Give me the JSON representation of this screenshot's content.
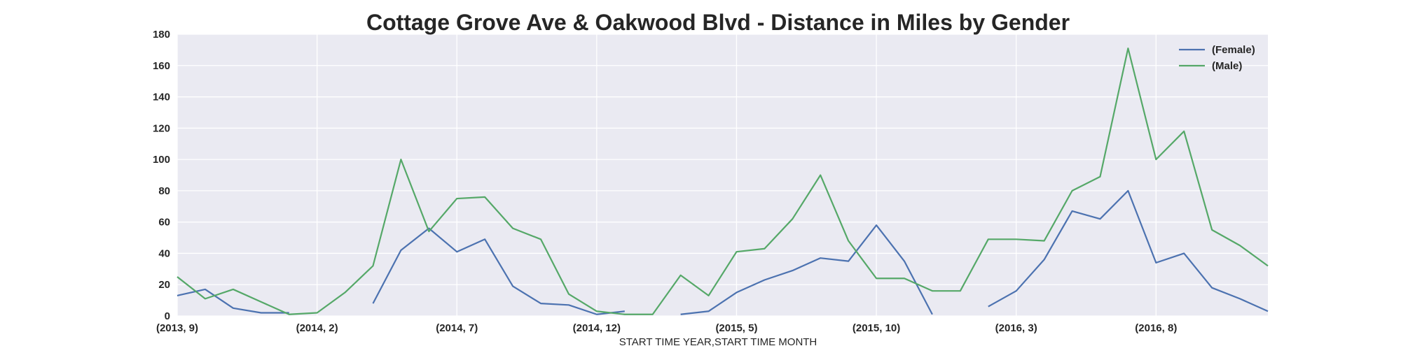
{
  "chart_data": {
    "type": "line",
    "title": "Cottage Grove Ave & Oakwood Blvd - Distance in Miles by Gender",
    "xlabel": "START TIME YEAR,START TIME MONTH",
    "ylabel": "",
    "ylim": [
      0,
      180
    ],
    "yticks": [
      0,
      20,
      40,
      60,
      80,
      100,
      120,
      140,
      160,
      180
    ],
    "grid": true,
    "legend_position": "top-right",
    "categories": [
      "(2013, 9)",
      "(2013, 10)",
      "(2013, 11)",
      "(2013, 12)",
      "(2014, 1)",
      "(2014, 2)",
      "(2014, 3)",
      "(2014, 4)",
      "(2014, 5)",
      "(2014, 6)",
      "(2014, 7)",
      "(2014, 8)",
      "(2014, 9)",
      "(2014, 10)",
      "(2014, 11)",
      "(2014, 12)",
      "(2015, 1)",
      "(2015, 2)",
      "(2015, 3)",
      "(2015, 4)",
      "(2015, 5)",
      "(2015, 6)",
      "(2015, 7)",
      "(2015, 8)",
      "(2015, 9)",
      "(2015, 10)",
      "(2015, 11)",
      "(2015, 12)",
      "(2016, 1)",
      "(2016, 2)",
      "(2016, 3)",
      "(2016, 4)",
      "(2016, 5)",
      "(2016, 6)",
      "(2016, 7)",
      "(2016, 8)",
      "(2016, 9)",
      "(2016, 10)",
      "(2016, 11)",
      "(2016, 12)"
    ],
    "xtick_labels": [
      "(2013, 9)",
      "(2014, 2)",
      "(2014, 7)",
      "(2014, 12)",
      "(2015, 5)",
      "(2015, 10)",
      "(2016, 3)",
      "(2016, 8)"
    ],
    "series": [
      {
        "name": "(Female)",
        "color": "#4c72b0",
        "values": [
          13,
          17,
          5,
          2,
          2,
          null,
          null,
          8,
          42,
          56,
          41,
          49,
          19,
          8,
          7,
          1,
          3,
          null,
          1,
          3,
          15,
          23,
          29,
          37,
          35,
          58,
          35,
          1,
          null,
          6,
          16,
          36,
          67,
          62,
          80,
          34,
          40,
          18,
          11,
          3
        ]
      },
      {
        "name": "(Male)",
        "color": "#55a868",
        "values": [
          25,
          11,
          17,
          9,
          1,
          2,
          15,
          32,
          100,
          54,
          75,
          76,
          56,
          49,
          14,
          3,
          1,
          1,
          26,
          13,
          41,
          43,
          62,
          90,
          48,
          24,
          24,
          16,
          16,
          49,
          49,
          48,
          80,
          89,
          171,
          100,
          118,
          55,
          45,
          32
        ]
      }
    ]
  },
  "style": {
    "plot_background": "#eaeaf2",
    "grid_color": "#ffffff",
    "text_color": "#262626"
  }
}
